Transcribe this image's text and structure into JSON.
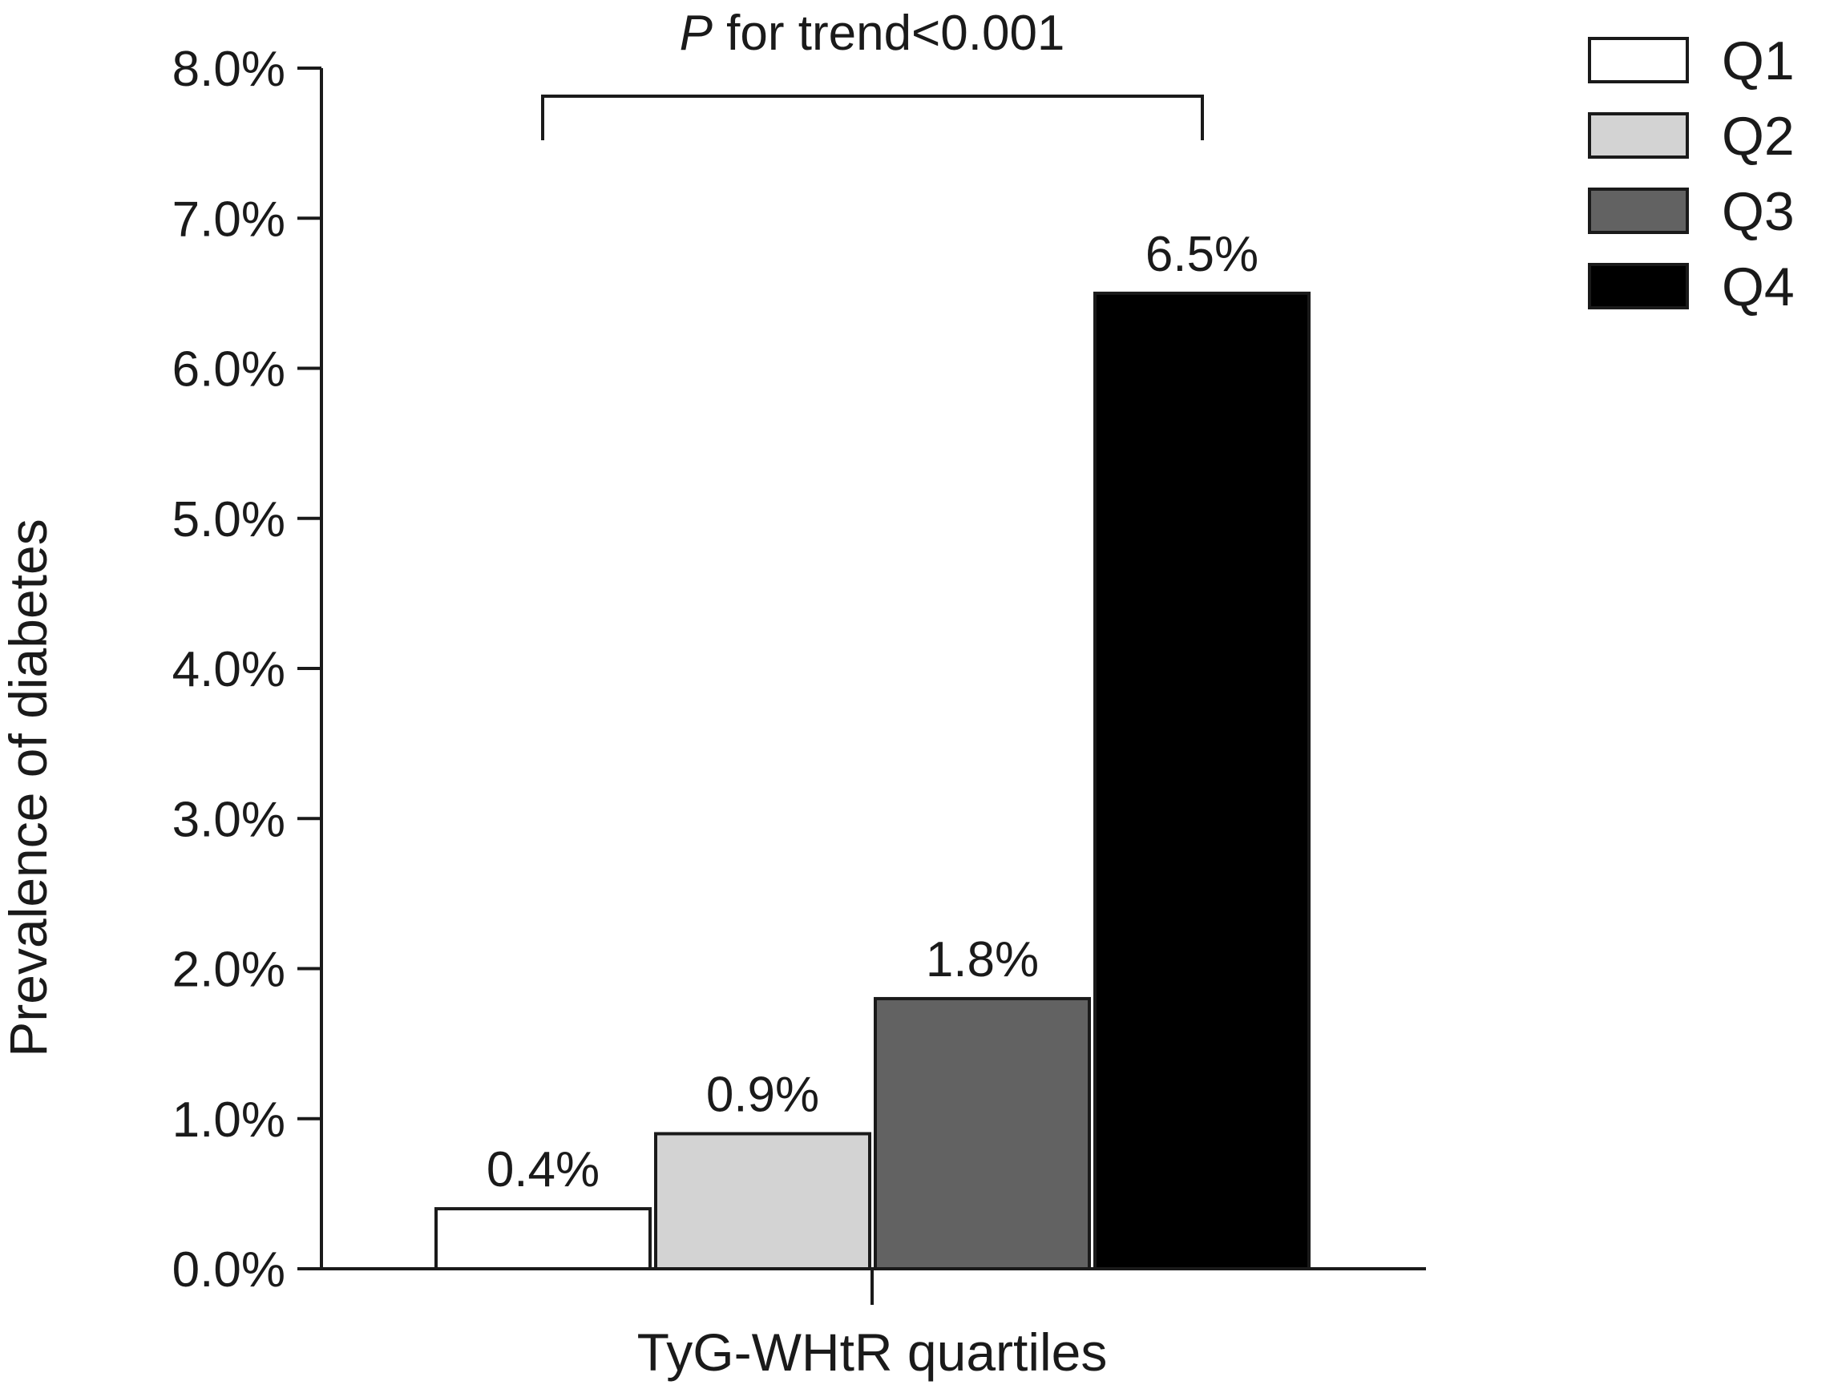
{
  "chart_data": {
    "type": "bar",
    "x_label": "TyG-WHtR quartiles",
    "y_label": "Prevalence of diabetes",
    "y_range": [
      0,
      8
    ],
    "y_ticks": [
      "0.0%",
      "1.0%",
      "2.0%",
      "3.0%",
      "4.0%",
      "5.0%",
      "6.0%",
      "7.0%",
      "8.0%"
    ],
    "series": [
      {
        "name": "Q1",
        "value": 0.4,
        "label": "0.4%",
        "color": "#ffffff"
      },
      {
        "name": "Q2",
        "value": 0.9,
        "label": "0.9%",
        "color": "#d3d3d3"
      },
      {
        "name": "Q3",
        "value": 1.8,
        "label": "1.8%",
        "color": "#626262"
      },
      {
        "name": "Q4",
        "value": 6.5,
        "label": "6.5%",
        "color": "#000000"
      }
    ],
    "annotation": {
      "p_symbol": "P",
      "text": " for trend<0.001"
    },
    "legend": {
      "position": "top-right"
    },
    "grid": false
  }
}
